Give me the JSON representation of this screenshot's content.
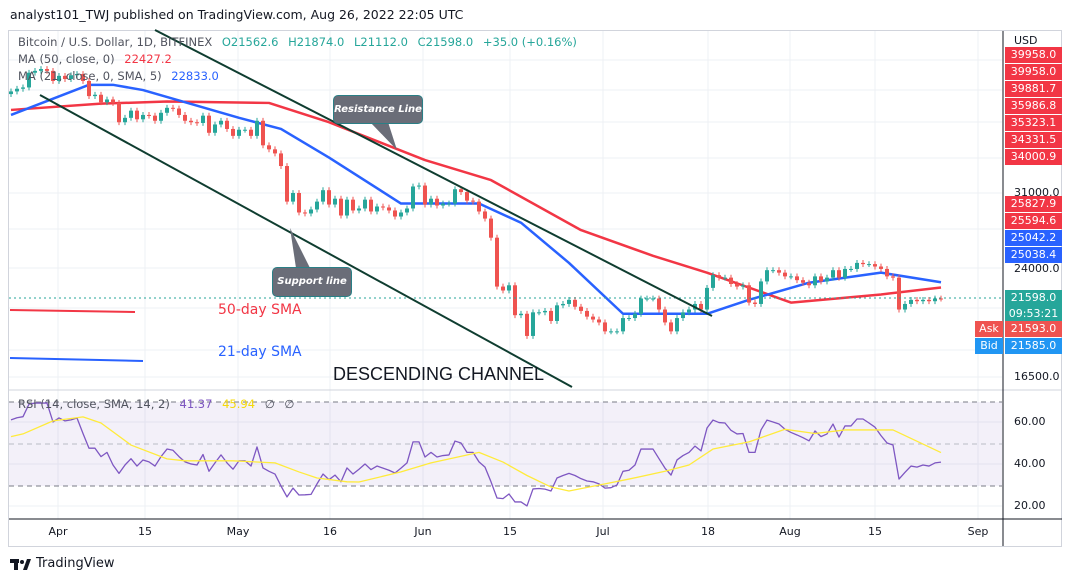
{
  "header": {
    "publish_line": "analyst101_TWJ published on TradingView.com, Aug 26, 2022 22:05 UTC"
  },
  "legend": {
    "symbol": "Bitcoin / U.S. Dollar, 1D, BITFINEX",
    "open": "O21562.6",
    "high": "H21874.0",
    "low": "L21112.0",
    "close": "C21598.0",
    "change": "+35.0 (+0.16%)",
    "ma50_label": "MA (50, close, 0)",
    "ma50_value": "22427.2",
    "ma21_label": "MA (21, close, 0, SMA, 5)",
    "ma21_value": "22833.0",
    "rsi_label": "RSI (14, close, SMA, 14, 2)",
    "rsi_value": "41.37",
    "rsi_sma_value": "45.94",
    "rsi_na_1": "∅",
    "rsi_na_2": "∅"
  },
  "price_axis": {
    "currency": "USD",
    "ticks": [
      "31000.0",
      "24000.0",
      "16500.0"
    ],
    "red_badges": [
      "39958.0",
      "39958.0",
      "39881.7",
      "35986.8",
      "35323.1",
      "34331.5",
      "34000.9",
      "25827.9",
      "25594.6"
    ],
    "blue_badges": [
      "25042.2",
      "25038.4"
    ],
    "last_price": "21598.0",
    "countdown": "09:53:21",
    "ask_label": "Ask",
    "ask": "21593.0",
    "bid_label": "Bid",
    "bid": "21585.0"
  },
  "rsi_axis": {
    "ticks": [
      "60.00",
      "40.00",
      "20.00"
    ]
  },
  "time_axis": {
    "ticks": [
      "Apr",
      "15",
      "May",
      "16",
      "Jun",
      "15",
      "Jul",
      "18",
      "Aug",
      "15",
      "Sep"
    ]
  },
  "annotations": {
    "resistance": "Resistance Line",
    "support": "Support line",
    "sma50": "50-day SMA",
    "sma21": "21-day SMA",
    "channel": "DESCENDING CHANNEL"
  },
  "footer": {
    "brand": "TradingView"
  },
  "colors": {
    "up": "#26a69a",
    "down": "#ef5350",
    "ma50": "#f23645",
    "ma21": "#2962ff",
    "rsi": "#7e57c2",
    "rsi_sma": "#ffeb3b",
    "ask": "#ef5350",
    "bid": "#2196f3"
  },
  "chart_data": {
    "type": "candlestick",
    "title": "Bitcoin / U.S. Dollar, 1D, BITFINEX",
    "y_scale": "log",
    "ylim": [
      16000,
      50000
    ],
    "grid": true,
    "start_date": "2022-03-24",
    "end_date": "2022-08-26",
    "closes": [
      43900,
      44300,
      44500,
      46800,
      47100,
      47400,
      47100,
      45500,
      46300,
      45800,
      46400,
      46600,
      45500,
      43200,
      43400,
      42300,
      42700,
      42200,
      39500,
      40100,
      41100,
      39900,
      40500,
      40400,
      39700,
      40800,
      41500,
      41400,
      40500,
      39700,
      39500,
      39400,
      40400,
      38100,
      39200,
      39700,
      38600,
      37700,
      38500,
      38500,
      37700,
      39700,
      36500,
      36000,
      35500,
      34000,
      30100,
      31000,
      29000,
      28900,
      29300,
      30100,
      31300,
      29800,
      30400,
      28700,
      30300,
      29200,
      29400,
      30300,
      29100,
      29600,
      29500,
      29200,
      28600,
      29000,
      29400,
      31700,
      31800,
      29800,
      30400,
      29700,
      29900,
      29900,
      31400,
      31100,
      30200,
      30100,
      29100,
      28400,
      26600,
      22500,
      22200,
      22600,
      20400,
      20500,
      19000,
      20600,
      20600,
      20700,
      20000,
      21100,
      21200,
      21500,
      21000,
      20700,
      20300,
      20100,
      19900,
      19300,
      19300,
      19300,
      20200,
      20200,
      20500,
      21600,
      21600,
      21600,
      20800,
      19900,
      19300,
      20200,
      20600,
      20800,
      21200,
      20800,
      22400,
      23400,
      23200,
      23200,
      22700,
      22500,
      22600,
      21300,
      21200,
      22900,
      23800,
      23800,
      23600,
      23300,
      23300,
      23000,
      22800,
      22600,
      23300,
      22900,
      23200,
      23800,
      23200,
      23900,
      23900,
      24400,
      24300,
      24300,
      24100,
      23900,
      23300,
      23200,
      20800,
      21200,
      21500,
      21400,
      21500,
      21400,
      21600,
      21598
    ],
    "ma50": [
      [
        "2022-03-24",
        41200
      ],
      [
        "2022-04-08",
        42100
      ],
      [
        "2022-04-19",
        42400
      ],
      [
        "2022-05-06",
        42200
      ],
      [
        "2022-05-16",
        39500
      ],
      [
        "2022-06-01",
        34700
      ],
      [
        "2022-06-12",
        32400
      ],
      [
        "2022-06-27",
        27300
      ],
      [
        "2022-07-09",
        25000
      ],
      [
        "2022-07-18",
        23600
      ],
      [
        "2022-08-01",
        21300
      ],
      [
        "2022-08-16",
        21900
      ],
      [
        "2022-08-26",
        22427.2
      ]
    ],
    "ma21": [
      [
        "2022-03-24",
        40500
      ],
      [
        "2022-04-06",
        44900
      ],
      [
        "2022-04-10",
        44900
      ],
      [
        "2022-04-15",
        44100
      ],
      [
        "2022-05-01",
        40100
      ],
      [
        "2022-05-08",
        38600
      ],
      [
        "2022-05-16",
        35000
      ],
      [
        "2022-05-28",
        29900
      ],
      [
        "2022-06-10",
        29900
      ],
      [
        "2022-06-17",
        28000
      ],
      [
        "2022-06-25",
        24400
      ],
      [
        "2022-07-04",
        20500
      ],
      [
        "2022-07-09",
        20500
      ],
      [
        "2022-07-18",
        20500
      ],
      [
        "2022-07-25",
        21500
      ],
      [
        "2022-08-04",
        22800
      ],
      [
        "2022-08-16",
        23600
      ],
      [
        "2022-08-26",
        22833
      ]
    ],
    "rsi": {
      "ylim": [
        15,
        75
      ],
      "bands": [
        30,
        50,
        70
      ],
      "values": [
        61.5,
        62.5,
        63,
        69,
        69.5,
        69.5,
        69.5,
        60.5,
        62.4,
        61,
        61.5,
        62.4,
        55,
        48,
        48,
        44,
        46,
        40,
        36,
        40,
        43,
        39.5,
        42.4,
        41.5,
        39.5,
        44,
        47.6,
        47,
        44,
        41.5,
        40.5,
        40,
        45,
        37,
        41,
        44.8,
        41,
        38,
        42,
        42,
        39.5,
        48.6,
        38.6,
        37,
        35.7,
        30,
        24.8,
        29,
        25.7,
        25.8,
        26,
        31,
        35.7,
        33,
        35.2,
        32,
        38.6,
        35.7,
        38,
        40.5,
        37.8,
        39.5,
        38.5,
        37.5,
        36.2,
        38.5,
        41,
        51,
        51,
        43.8,
        46,
        43.8,
        44.5,
        44.8,
        51.4,
        50.5,
        46,
        46,
        41.5,
        39,
        32,
        24.3,
        24,
        26.2,
        22.4,
        22.4,
        20.5,
        28.6,
        28.8,
        28.5,
        27.6,
        33.8,
        35,
        36,
        35,
        33.5,
        32.4,
        32,
        31,
        29,
        29.2,
        30.5,
        37,
        37.5,
        40,
        47.6,
        47.6,
        47.6,
        43,
        38.5,
        35.2,
        42.4,
        44.5,
        46,
        49,
        46.7,
        57.6,
        61.4,
        60.2,
        60,
        56.5,
        54.8,
        55,
        46,
        46,
        56.7,
        61.4,
        60.5,
        59.5,
        57,
        55.5,
        54.3,
        53,
        51.5,
        56.2,
        53.5,
        54.8,
        59.5,
        53.3,
        58.6,
        58.6,
        61.9,
        61.9,
        60,
        58,
        54,
        50.5,
        49.5,
        33.3,
        36.5,
        39.5,
        39,
        40,
        39.5,
        41,
        41.37
      ],
      "sma": [
        [
          "2022-03-24",
          53.5
        ],
        [
          "2022-03-26",
          54.8
        ],
        [
          "2022-03-31",
          61
        ],
        [
          "2022-04-05",
          62.9
        ],
        [
          "2022-04-08",
          60
        ],
        [
          "2022-04-13",
          49.5
        ],
        [
          "2022-04-19",
          42.9
        ],
        [
          "2022-04-22",
          42
        ],
        [
          "2022-04-30",
          42
        ],
        [
          "2022-05-07",
          41
        ],
        [
          "2022-05-11",
          36.7
        ],
        [
          "2022-05-14",
          33.8
        ],
        [
          "2022-05-19",
          32
        ],
        [
          "2022-05-21",
          31.9
        ],
        [
          "2022-05-28",
          36.7
        ],
        [
          "2022-06-02",
          41
        ],
        [
          "2022-06-10",
          46
        ],
        [
          "2022-06-14",
          41.4
        ],
        [
          "2022-06-18",
          35
        ],
        [
          "2022-06-22",
          29.5
        ],
        [
          "2022-06-25",
          27.6
        ],
        [
          "2022-07-01",
          31
        ],
        [
          "2022-07-05",
          33.3
        ],
        [
          "2022-07-11",
          37
        ],
        [
          "2022-07-15",
          40
        ],
        [
          "2022-07-19",
          47.6
        ],
        [
          "2022-07-25",
          51
        ],
        [
          "2022-07-31",
          57
        ],
        [
          "2022-08-05",
          55
        ],
        [
          "2022-08-10",
          56.7
        ],
        [
          "2022-08-18",
          56.7
        ],
        [
          "2022-08-26",
          45.94
        ]
      ]
    }
  }
}
